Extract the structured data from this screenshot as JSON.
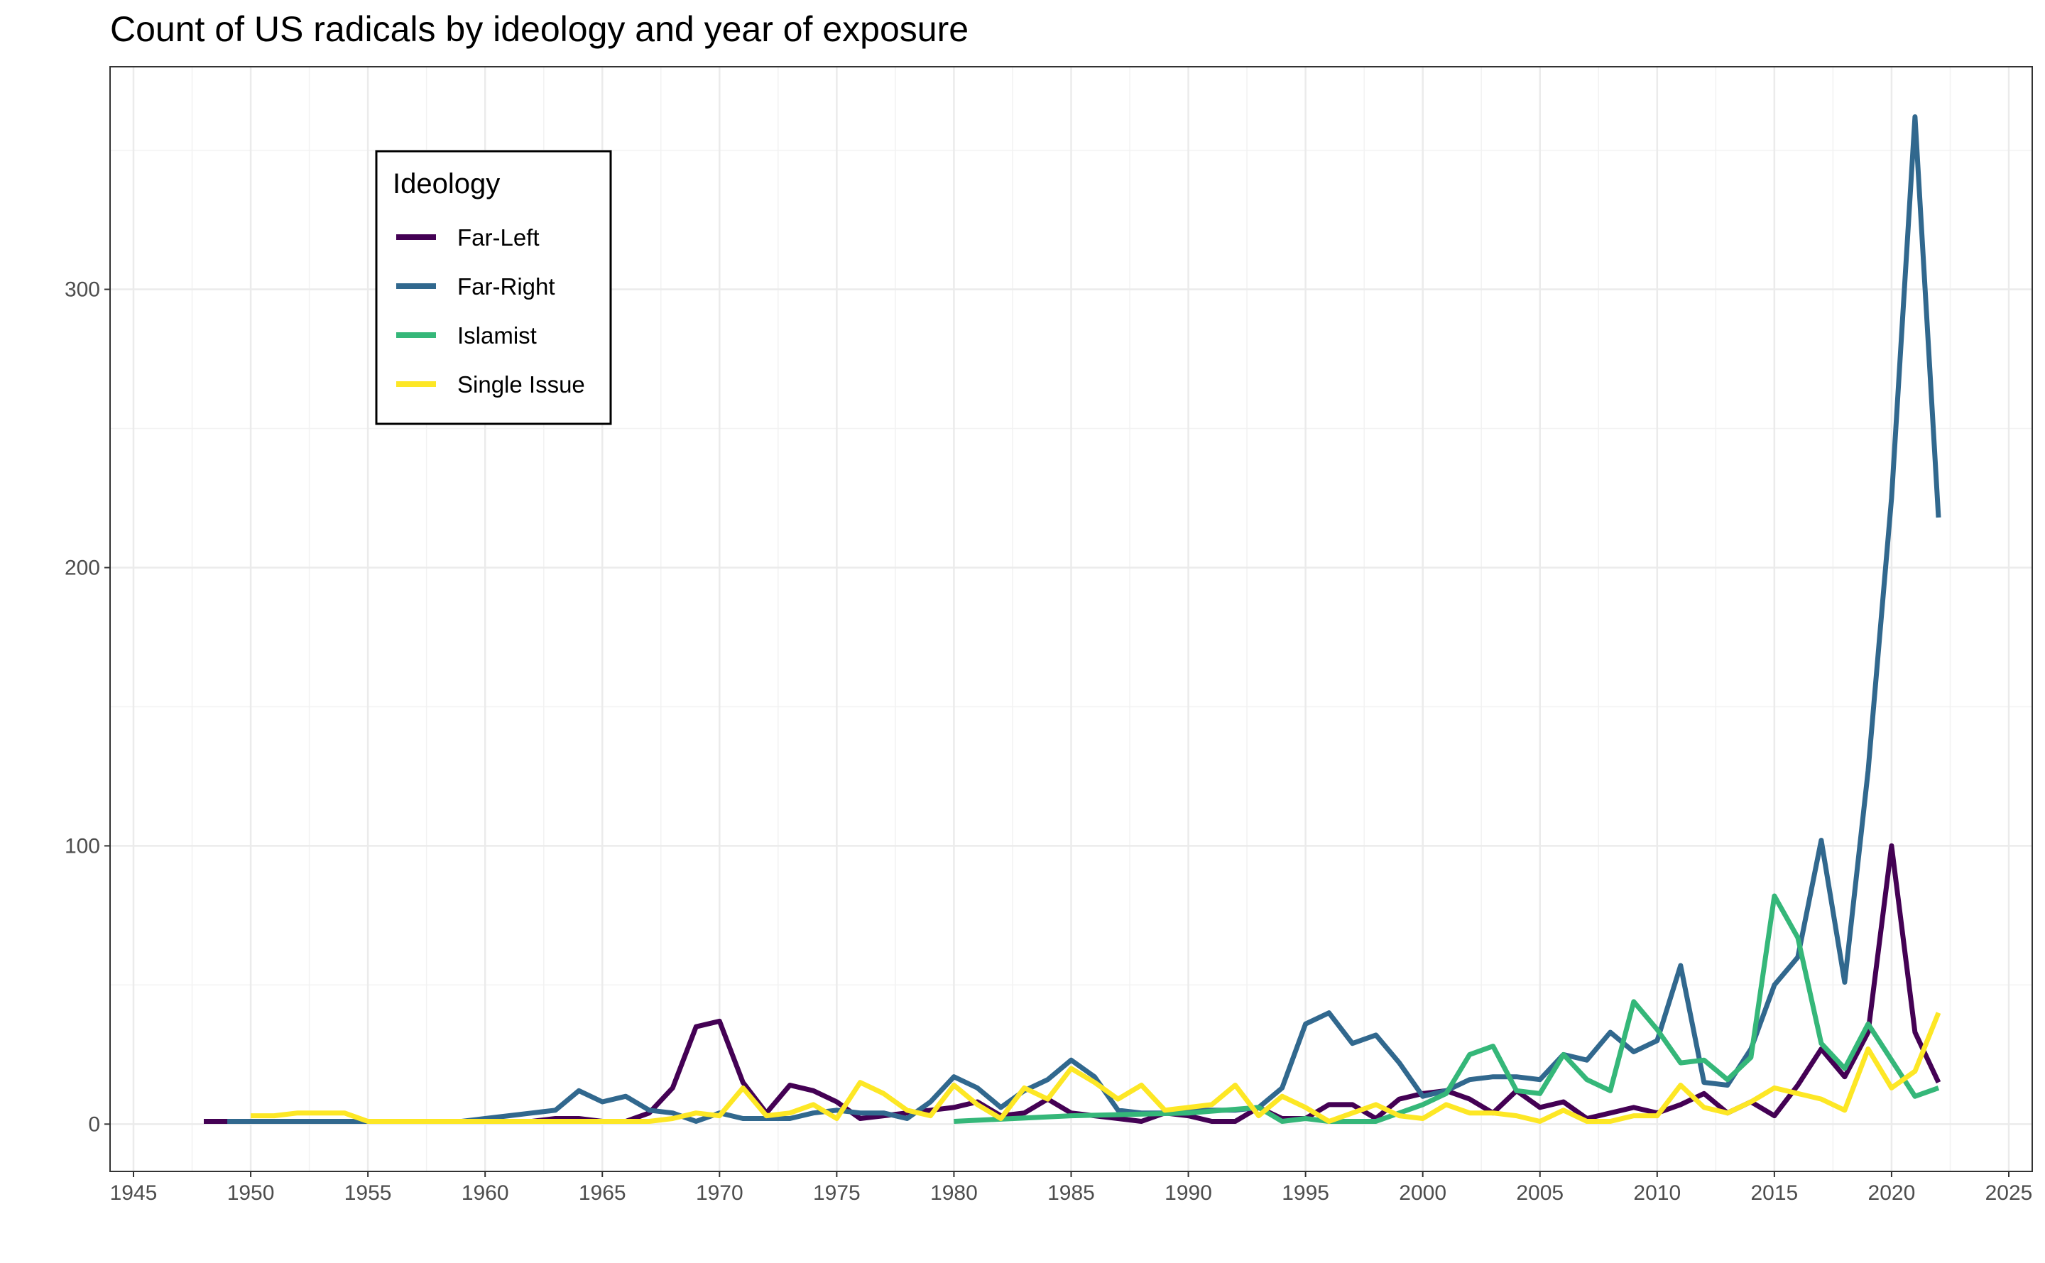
{
  "chart_data": {
    "type": "line",
    "title": "Count of US radicals by ideology and year of exposure",
    "xlabel": "",
    "ylabel": "",
    "xlim": [
      1944,
      2026
    ],
    "ylim": [
      -17,
      380
    ],
    "x_ticks": [
      1945,
      1950,
      1955,
      1960,
      1965,
      1970,
      1975,
      1980,
      1985,
      1990,
      1995,
      2000,
      2005,
      2010,
      2015,
      2020,
      2025
    ],
    "y_ticks": [
      0,
      100,
      200,
      300
    ],
    "grid": true,
    "legend": {
      "title": "Ideology",
      "placement": "top-left inside plot"
    },
    "series": [
      {
        "name": "Far-Left",
        "color": "#440154",
        "points": [
          [
            1948,
            1
          ],
          [
            1949,
            1
          ],
          [
            1950,
            1
          ],
          [
            1951,
            1
          ],
          [
            1952,
            1
          ],
          [
            1953,
            1
          ],
          [
            1954,
            1
          ],
          [
            1955,
            1
          ],
          [
            1956,
            1
          ],
          [
            1957,
            1
          ],
          [
            1958,
            1
          ],
          [
            1959,
            1
          ],
          [
            1960,
            1
          ],
          [
            1961,
            1
          ],
          [
            1962,
            1
          ],
          [
            1963,
            2
          ],
          [
            1964,
            2
          ],
          [
            1965,
            1
          ],
          [
            1966,
            1
          ],
          [
            1967,
            4
          ],
          [
            1968,
            13
          ],
          [
            1969,
            35
          ],
          [
            1970,
            37
          ],
          [
            1971,
            15
          ],
          [
            1972,
            4
          ],
          [
            1973,
            14
          ],
          [
            1974,
            12
          ],
          [
            1975,
            8
          ],
          [
            1976,
            2
          ],
          [
            1977,
            3
          ],
          [
            1978,
            4
          ],
          [
            1979,
            5
          ],
          [
            1980,
            6
          ],
          [
            1981,
            8
          ],
          [
            1982,
            3
          ],
          [
            1983,
            4
          ],
          [
            1984,
            9
          ],
          [
            1985,
            4
          ],
          [
            1986,
            3
          ],
          [
            1987,
            2
          ],
          [
            1988,
            1
          ],
          [
            1989,
            4
          ],
          [
            1990,
            3
          ],
          [
            1991,
            1
          ],
          [
            1992,
            1
          ],
          [
            1993,
            6
          ],
          [
            1994,
            2
          ],
          [
            1995,
            2
          ],
          [
            1996,
            7
          ],
          [
            1997,
            7
          ],
          [
            1998,
            2
          ],
          [
            1999,
            9
          ],
          [
            2000,
            11
          ],
          [
            2001,
            12
          ],
          [
            2002,
            9
          ],
          [
            2003,
            4
          ],
          [
            2004,
            12
          ],
          [
            2005,
            6
          ],
          [
            2006,
            8
          ],
          [
            2007,
            2
          ],
          [
            2008,
            4
          ],
          [
            2009,
            6
          ],
          [
            2010,
            4
          ],
          [
            2011,
            7
          ],
          [
            2012,
            11
          ],
          [
            2013,
            4
          ],
          [
            2014,
            8
          ],
          [
            2015,
            3
          ],
          [
            2016,
            14
          ],
          [
            2017,
            27
          ],
          [
            2018,
            17
          ],
          [
            2019,
            33
          ],
          [
            2020,
            100
          ],
          [
            2021,
            33
          ],
          [
            2022,
            15
          ]
        ]
      },
      {
        "name": "Far-Right",
        "color": "#31688e",
        "points": [
          [
            1949,
            1
          ],
          [
            1950,
            1
          ],
          [
            1951,
            1
          ],
          [
            1952,
            1
          ],
          [
            1953,
            1
          ],
          [
            1954,
            1
          ],
          [
            1955,
            1
          ],
          [
            1956,
            1
          ],
          [
            1957,
            1
          ],
          [
            1958,
            1
          ],
          [
            1959,
            1
          ],
          [
            1960,
            2
          ],
          [
            1961,
            3
          ],
          [
            1962,
            4
          ],
          [
            1963,
            5
          ],
          [
            1964,
            12
          ],
          [
            1965,
            8
          ],
          [
            1966,
            10
          ],
          [
            1967,
            5
          ],
          [
            1968,
            4
          ],
          [
            1969,
            1
          ],
          [
            1970,
            4
          ],
          [
            1971,
            2
          ],
          [
            1972,
            2
          ],
          [
            1973,
            2
          ],
          [
            1974,
            4
          ],
          [
            1975,
            5
          ],
          [
            1976,
            4
          ],
          [
            1977,
            4
          ],
          [
            1978,
            2
          ],
          [
            1979,
            8
          ],
          [
            1980,
            17
          ],
          [
            1981,
            13
          ],
          [
            1982,
            6
          ],
          [
            1983,
            12
          ],
          [
            1984,
            16
          ],
          [
            1985,
            23
          ],
          [
            1986,
            17
          ],
          [
            1987,
            5
          ],
          [
            1988,
            4
          ],
          [
            1989,
            4
          ],
          [
            1990,
            5
          ],
          [
            1991,
            5
          ],
          [
            1992,
            5
          ],
          [
            1993,
            6
          ],
          [
            1994,
            13
          ],
          [
            1995,
            36
          ],
          [
            1996,
            40
          ],
          [
            1997,
            29
          ],
          [
            1998,
            32
          ],
          [
            1999,
            22
          ],
          [
            2000,
            10
          ],
          [
            2001,
            12
          ],
          [
            2002,
            16
          ],
          [
            2003,
            17
          ],
          [
            2004,
            17
          ],
          [
            2005,
            16
          ],
          [
            2006,
            25
          ],
          [
            2007,
            23
          ],
          [
            2008,
            33
          ],
          [
            2009,
            26
          ],
          [
            2010,
            30
          ],
          [
            2011,
            57
          ],
          [
            2012,
            15
          ],
          [
            2013,
            14
          ],
          [
            2014,
            27
          ],
          [
            2015,
            50
          ],
          [
            2016,
            60
          ],
          [
            2017,
            102
          ],
          [
            2018,
            51
          ],
          [
            2019,
            127
          ],
          [
            2020,
            225
          ],
          [
            2021,
            362
          ],
          [
            2022,
            218
          ]
        ]
      },
      {
        "name": "Islamist",
        "color": "#35b779",
        "points": [
          [
            1980,
            1
          ],
          [
            1985,
            3
          ],
          [
            1990,
            4
          ],
          [
            1993,
            6
          ],
          [
            1994,
            1
          ],
          [
            1995,
            2
          ],
          [
            1996,
            1
          ],
          [
            1997,
            1
          ],
          [
            1998,
            1
          ],
          [
            1999,
            4
          ],
          [
            2000,
            7
          ],
          [
            2001,
            11
          ],
          [
            2002,
            25
          ],
          [
            2003,
            28
          ],
          [
            2004,
            12
          ],
          [
            2005,
            11
          ],
          [
            2006,
            25
          ],
          [
            2007,
            16
          ],
          [
            2008,
            12
          ],
          [
            2009,
            44
          ],
          [
            2010,
            34
          ],
          [
            2011,
            22
          ],
          [
            2012,
            23
          ],
          [
            2013,
            16
          ],
          [
            2014,
            24
          ],
          [
            2015,
            82
          ],
          [
            2016,
            67
          ],
          [
            2017,
            29
          ],
          [
            2018,
            20
          ],
          [
            2019,
            36
          ],
          [
            2020,
            23
          ],
          [
            2021,
            10
          ],
          [
            2022,
            13
          ]
        ]
      },
      {
        "name": "Single Issue",
        "color": "#fde725",
        "points": [
          [
            1950,
            3
          ],
          [
            1951,
            3
          ],
          [
            1952,
            4
          ],
          [
            1953,
            4
          ],
          [
            1954,
            4
          ],
          [
            1955,
            1
          ],
          [
            1956,
            1
          ],
          [
            1957,
            1
          ],
          [
            1958,
            1
          ],
          [
            1959,
            1
          ],
          [
            1960,
            1
          ],
          [
            1961,
            1
          ],
          [
            1962,
            1
          ],
          [
            1963,
            1
          ],
          [
            1964,
            1
          ],
          [
            1965,
            1
          ],
          [
            1966,
            1
          ],
          [
            1967,
            1
          ],
          [
            1968,
            2
          ],
          [
            1969,
            4
          ],
          [
            1970,
            3
          ],
          [
            1971,
            13
          ],
          [
            1972,
            3
          ],
          [
            1973,
            4
          ],
          [
            1974,
            7
          ],
          [
            1975,
            2
          ],
          [
            1976,
            15
          ],
          [
            1977,
            11
          ],
          [
            1978,
            5
          ],
          [
            1979,
            3
          ],
          [
            1980,
            14
          ],
          [
            1981,
            7
          ],
          [
            1982,
            2
          ],
          [
            1983,
            13
          ],
          [
            1984,
            9
          ],
          [
            1985,
            20
          ],
          [
            1986,
            15
          ],
          [
            1987,
            9
          ],
          [
            1988,
            14
          ],
          [
            1989,
            5
          ],
          [
            1990,
            6
          ],
          [
            1991,
            7
          ],
          [
            1992,
            14
          ],
          [
            1993,
            3
          ],
          [
            1994,
            10
          ],
          [
            1995,
            6
          ],
          [
            1996,
            1
          ],
          [
            1997,
            4
          ],
          [
            1998,
            7
          ],
          [
            1999,
            3
          ],
          [
            2000,
            2
          ],
          [
            2001,
            7
          ],
          [
            2002,
            4
          ],
          [
            2003,
            4
          ],
          [
            2004,
            3
          ],
          [
            2005,
            1
          ],
          [
            2006,
            5
          ],
          [
            2007,
            1
          ],
          [
            2008,
            1
          ],
          [
            2009,
            3
          ],
          [
            2010,
            3
          ],
          [
            2011,
            14
          ],
          [
            2012,
            6
          ],
          [
            2013,
            4
          ],
          [
            2014,
            8
          ],
          [
            2015,
            13
          ],
          [
            2016,
            11
          ],
          [
            2017,
            9
          ],
          [
            2018,
            5
          ],
          [
            2019,
            27
          ],
          [
            2020,
            13
          ],
          [
            2021,
            19
          ],
          [
            2022,
            40
          ]
        ]
      }
    ]
  }
}
